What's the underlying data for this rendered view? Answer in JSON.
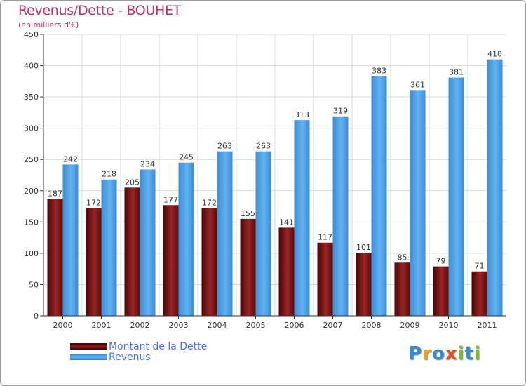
{
  "title": "Revenus/Dette - BOUHET",
  "subtitle": "(en milliers d'€)",
  "logo": {
    "text": "Proxiti",
    "letters": [
      "P",
      "r",
      "o",
      "x",
      "i",
      "t",
      "i"
    ],
    "colors": [
      "#2f8fd8",
      "#f0a020",
      "#2f8fd8",
      "#e8501c",
      "#7cbf2a",
      "#2f8fd8",
      "#7cbf2a"
    ]
  },
  "legend": {
    "items": [
      {
        "label": "Montant de la Dette",
        "color": "#6e0f0f"
      },
      {
        "label": "Revenus",
        "color": "#4a9ee6"
      }
    ]
  },
  "chart_data": {
    "type": "bar",
    "categories": [
      "2000",
      "2001",
      "2002",
      "2003",
      "2004",
      "2005",
      "2006",
      "2007",
      "2008",
      "2009",
      "2010",
      "2011"
    ],
    "series": [
      {
        "name": "Montant de la Dette",
        "color": "#7a1515",
        "values": [
          187,
          172,
          205,
          177,
          172,
          155,
          141,
          117,
          101,
          85,
          79,
          71
        ]
      },
      {
        "name": "Revenus",
        "color": "#4a9ee6",
        "values": [
          242,
          218,
          234,
          245,
          263,
          263,
          313,
          319,
          383,
          361,
          381,
          410
        ]
      }
    ],
    "yticks": [
      0,
      50,
      100,
      150,
      200,
      250,
      300,
      350,
      400,
      450
    ],
    "ylim": [
      0,
      450
    ],
    "grid": true,
    "legend": "bottom-left"
  }
}
